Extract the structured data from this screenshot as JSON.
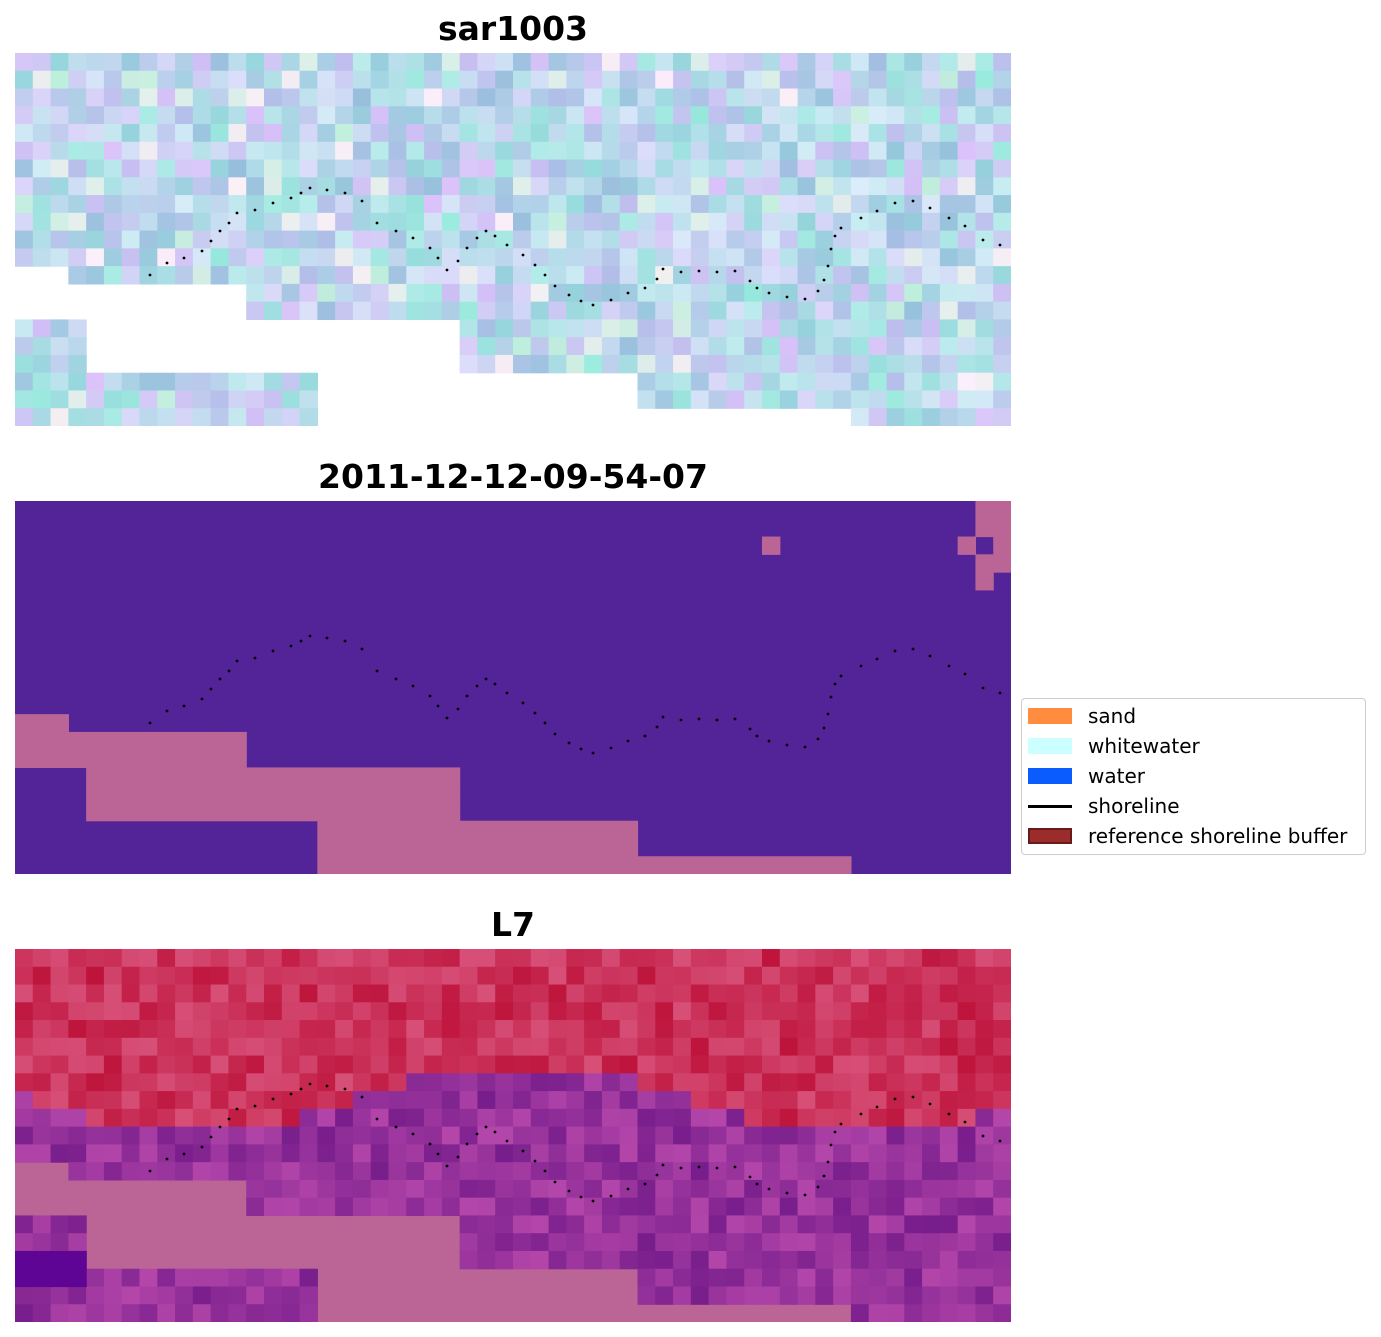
{
  "panels": [
    {
      "title": "sar1003",
      "scheme": "sar"
    },
    {
      "title": "2011-12-12-09-54-07",
      "scheme": "classes"
    },
    {
      "title": "L7",
      "scheme": "ndwi"
    }
  ],
  "legend": {
    "items": [
      {
        "label": "sand",
        "color": "#ff8c3f",
        "kind": "patch"
      },
      {
        "label": "whitewater",
        "color": "#ccffff",
        "kind": "patch"
      },
      {
        "label": "water",
        "color": "#0a5cff",
        "kind": "patch"
      },
      {
        "label": "shoreline",
        "color": "#000000",
        "kind": "line"
      },
      {
        "label": "reference shoreline buffer",
        "color": "#9b2c2c",
        "kind": "patch"
      }
    ]
  },
  "colors": {
    "no_data_fill": "#ffffff",
    "class_background": "#532398",
    "class_masked": "#ba6595",
    "ndwi_masked": "#ba6595",
    "shoreline_points": "#000000"
  }
}
